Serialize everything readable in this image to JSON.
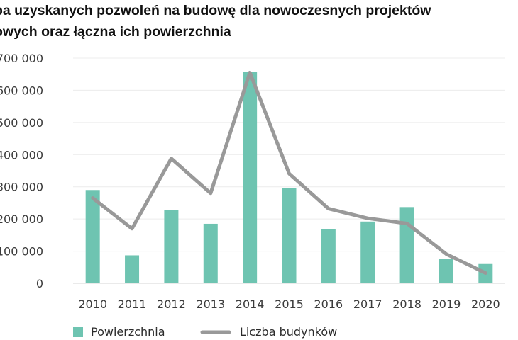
{
  "chart_data": {
    "type": "bar",
    "title_lines": [
      "ba uzyskanych pozwoleń na budowę dla nowoczesnych projektów",
      "owych oraz łączna ich powierzchnia"
    ],
    "categories": [
      "2010",
      "2011",
      "2012",
      "2013",
      "2014",
      "2015",
      "2016",
      "2017",
      "2018",
      "2019",
      "2020"
    ],
    "y_tick_labels": [
      "0",
      "100 000",
      "200 000",
      "300 000",
      "400 000",
      "500 000",
      "600 000",
      "700 000"
    ],
    "ylim": [
      0,
      700000
    ],
    "series": [
      {
        "name": "Powierzchnia",
        "kind": "bar",
        "color": "#6ec4b1",
        "values": [
          290000,
          87000,
          227000,
          185000,
          657000,
          295000,
          168000,
          192000,
          237000,
          76000,
          60000
        ]
      },
      {
        "name": "Liczba budynków",
        "kind": "line",
        "color": "#999999",
        "values": [
          265000,
          170000,
          388000,
          280000,
          655000,
          341000,
          232000,
          202000,
          186000,
          91000,
          32000
        ]
      }
    ],
    "grid": true,
    "legend_position": "bottom-left"
  }
}
